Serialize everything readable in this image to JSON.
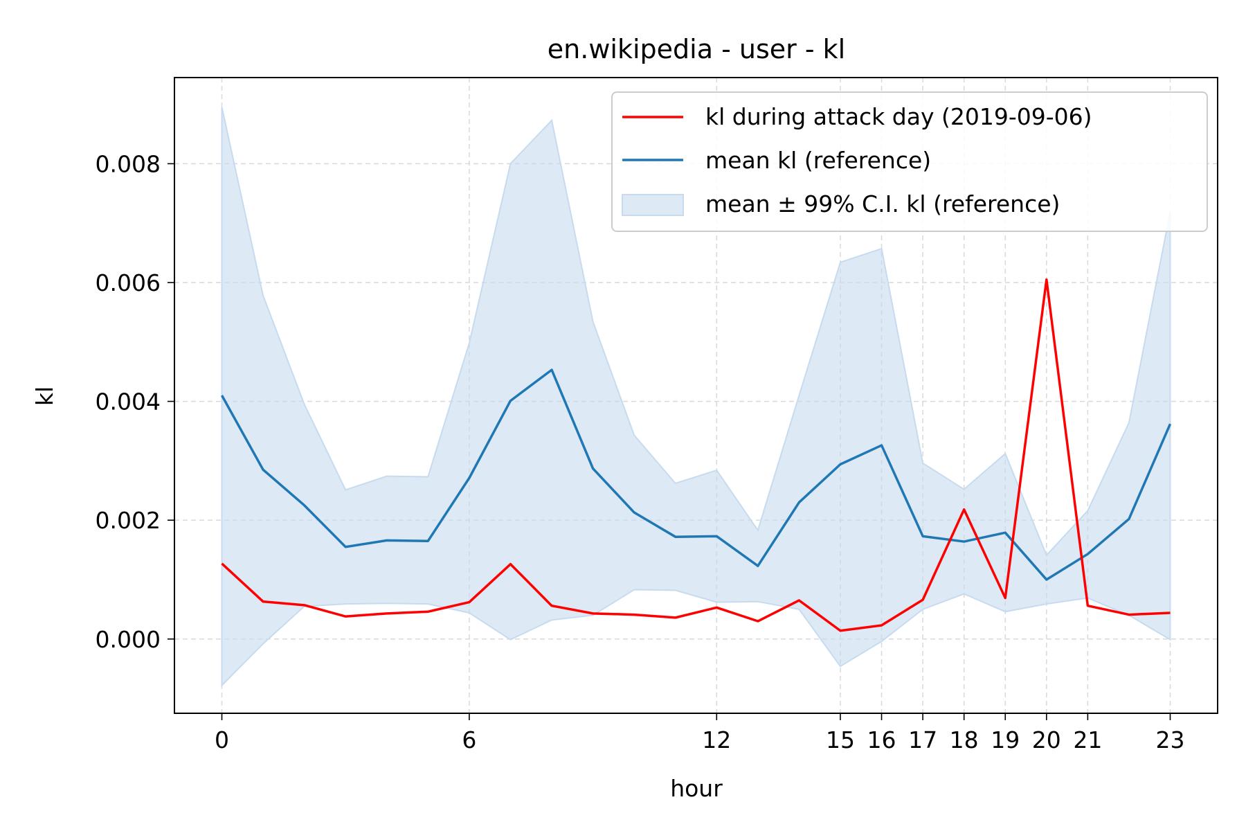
{
  "chart_data": {
    "type": "line",
    "title": "en.wikipedia - user - kl",
    "xlabel": "hour",
    "ylabel": "kl",
    "xlim": [
      -1.15,
      24.15
    ],
    "ylim": [
      -0.00125,
      0.00945
    ],
    "xticks": [
      0,
      6,
      12,
      15,
      16,
      17,
      18,
      19,
      20,
      21,
      23
    ],
    "yticks": [
      0.0,
      0.002,
      0.004,
      0.006,
      0.008
    ],
    "ytick_labels": [
      "0.000",
      "0.002",
      "0.004",
      "0.006",
      "0.008"
    ],
    "grid": true,
    "legend_position": "top-right",
    "x": [
      0,
      1,
      2,
      3,
      4,
      5,
      6,
      7,
      8,
      9,
      10,
      11,
      12,
      13,
      14,
      15,
      16,
      17,
      18,
      19,
      20,
      21,
      22,
      23
    ],
    "series": [
      {
        "name": "kl during attack day (2019-09-06)",
        "kind": "line",
        "color": "#ff0000",
        "values": [
          0.00127,
          0.00063,
          0.00057,
          0.00038,
          0.00043,
          0.00046,
          0.00062,
          0.00126,
          0.00056,
          0.00043,
          0.00041,
          0.00036,
          0.00053,
          0.0003,
          0.00065,
          0.00014,
          0.00023,
          0.00066,
          0.00218,
          0.00069,
          0.00605,
          0.00056,
          0.00041,
          0.00044
        ]
      },
      {
        "name": "mean kl (reference)",
        "kind": "line",
        "color": "#1f77b4",
        "values": [
          0.0041,
          0.00285,
          0.00225,
          0.00155,
          0.00166,
          0.00165,
          0.00271,
          0.00401,
          0.00453,
          0.00287,
          0.00213,
          0.00172,
          0.00173,
          0.00123,
          0.0023,
          0.00294,
          0.00326,
          0.00173,
          0.00164,
          0.00179,
          0.001,
          0.00143,
          0.00202,
          0.00362
        ]
      },
      {
        "name": "mean ± 99% C.I. kl (reference)",
        "kind": "band",
        "color": "#c6dbef",
        "upper": [
          0.00895,
          0.00578,
          0.00395,
          0.00251,
          0.00274,
          0.00273,
          0.00498,
          0.008,
          0.00873,
          0.00534,
          0.00343,
          0.00262,
          0.00284,
          0.00183,
          0.0041,
          0.00634,
          0.00657,
          0.00296,
          0.00252,
          0.00312,
          0.00141,
          0.00216,
          0.00364,
          0.00719
        ],
        "lower": [
          -0.00078,
          -8e-05,
          0.00055,
          0.00059,
          0.0006,
          0.00059,
          0.00044,
          -1e-05,
          0.00032,
          0.0004,
          0.00083,
          0.00082,
          0.00062,
          0.00063,
          0.0005,
          -0.00046,
          -4e-05,
          0.0005,
          0.00076,
          0.00046,
          0.00059,
          0.00069,
          0.0004,
          -1e-05
        ]
      }
    ]
  }
}
